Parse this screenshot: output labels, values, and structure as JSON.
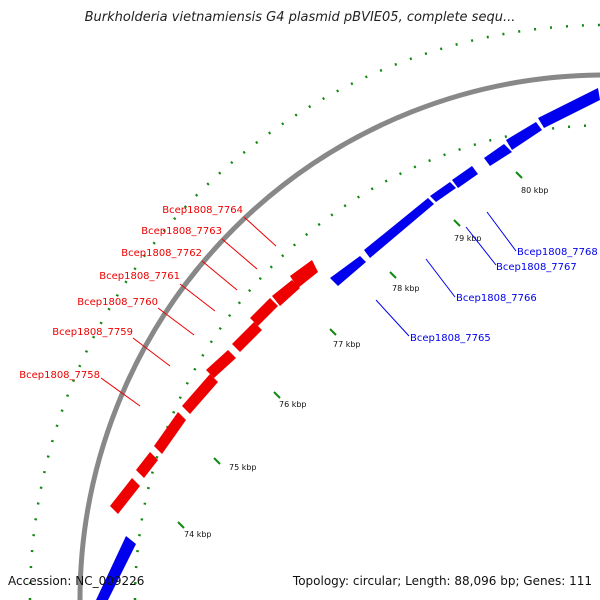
{
  "header": {
    "title": "Burkholderia vietnamiensis G4 plasmid pBVIE05, complete sequ..."
  },
  "footer": {
    "accession": "Accession: NC_009226",
    "summary": "Topology: circular; Length: 88,096 bp; Genes: 111"
  },
  "colors": {
    "forward": "#0000ee",
    "reverse": "#ee0000",
    "backbone": "#888888",
    "ticks": "#118811"
  },
  "ticks": [
    {
      "kb": 74,
      "label": "74 kbp"
    },
    {
      "kb": 75,
      "label": "75 kbp"
    },
    {
      "kb": 76,
      "label": "76 kbp"
    },
    {
      "kb": 77,
      "label": "77 kbp"
    },
    {
      "kb": 78,
      "label": "78 kbp"
    },
    {
      "kb": 79,
      "label": "79 kbp"
    },
    {
      "kb": 80,
      "label": "80 kbp"
    }
  ],
  "genes": {
    "reverse": [
      "Bcep1808_7764",
      "Bcep1808_7763",
      "Bcep1808_7762",
      "Bcep1808_7761",
      "Bcep1808_7760",
      "Bcep1808_7759",
      "Bcep1808_7758"
    ],
    "forward": [
      "Bcep1808_7768",
      "Bcep1808_7767",
      "Bcep1808_7766",
      "Bcep1808_7765"
    ]
  }
}
